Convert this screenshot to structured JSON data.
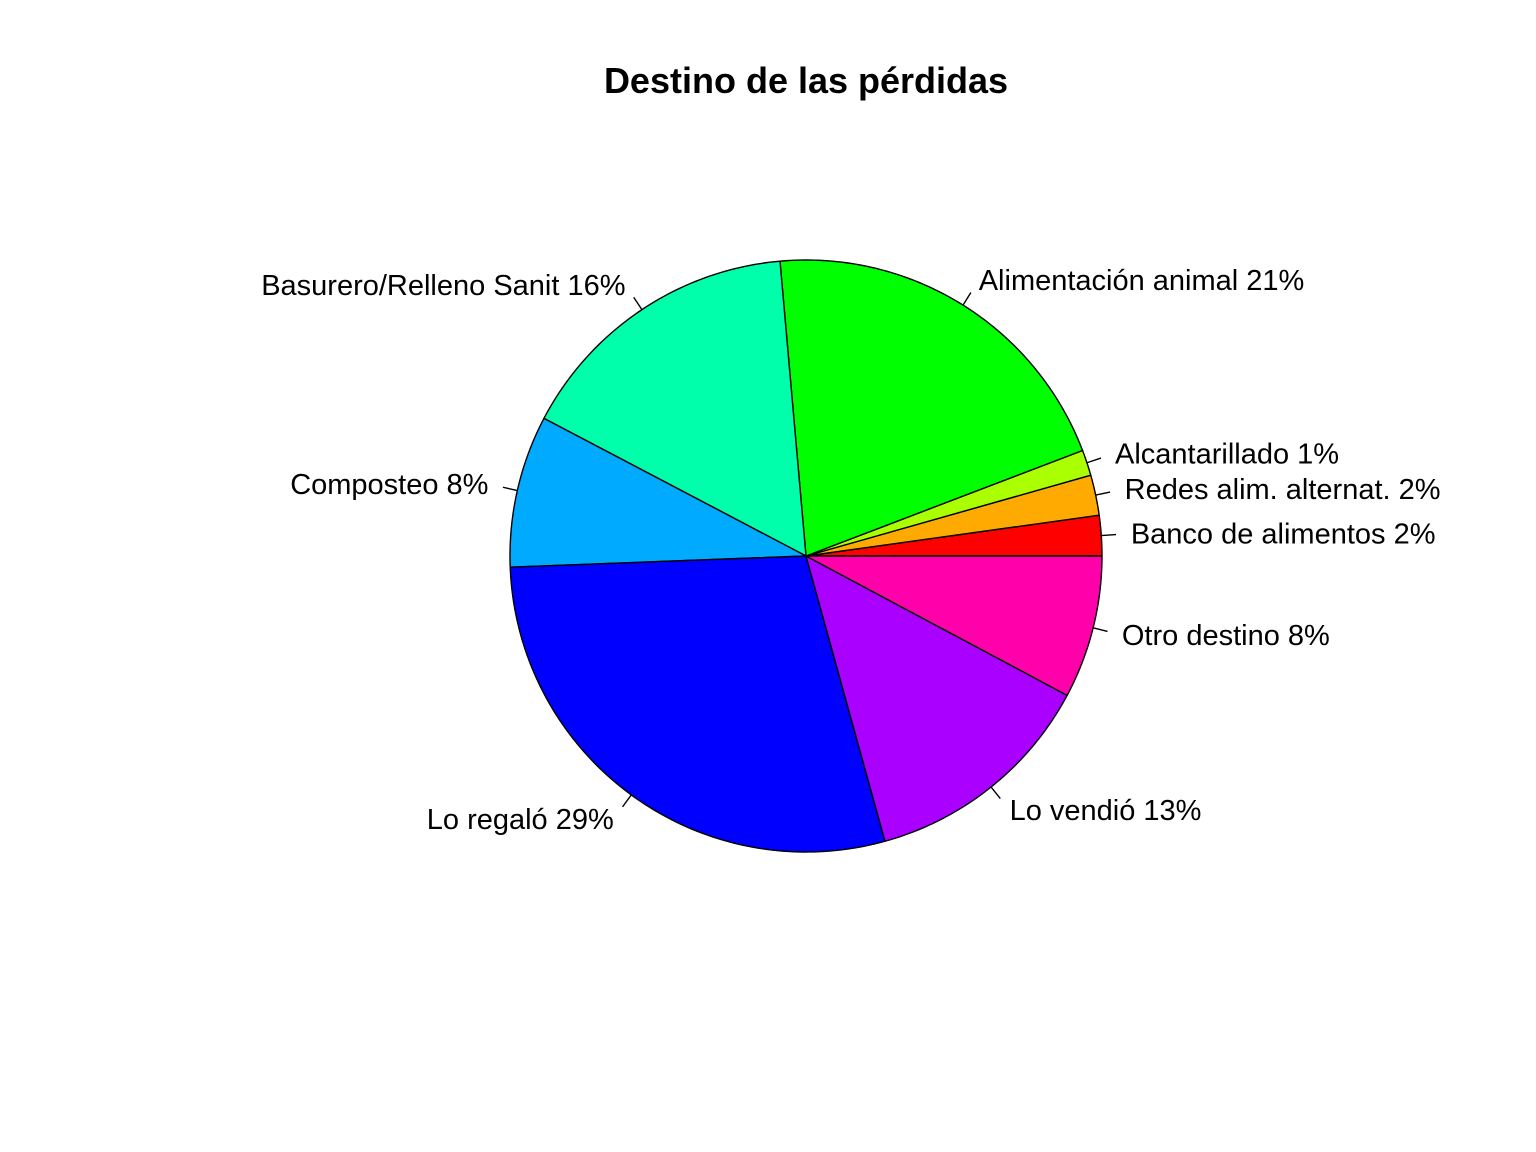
{
  "chart_data": {
    "type": "pie",
    "title": "Destino de las pérdidas",
    "start_angle_deg": 0,
    "direction": "counterclockwise",
    "slices": [
      {
        "label": "Banco de alimentos 2%",
        "value": 2.2,
        "color": "#FF0000"
      },
      {
        "label": "Redes alim. alternat. 2%",
        "value": 2.2,
        "color": "#FFAA00"
      },
      {
        "label": "Alcantarillado 1%",
        "value": 1.4,
        "color": "#AAFF00"
      },
      {
        "label": "Alimentación animal 21%",
        "value": 20.6,
        "color": "#00FF00"
      },
      {
        "label": "Basurero/Relleno Sanit 16%",
        "value": 15.9,
        "color": "#00FFAA"
      },
      {
        "label": "Composteo 8%",
        "value": 8.3,
        "color": "#00AAFF"
      },
      {
        "label": "Lo regaló 29%",
        "value": 28.7,
        "color": "#0000FF"
      },
      {
        "label": "Lo vendió 13%",
        "value": 12.9,
        "color": "#AA00FF"
      },
      {
        "label": "Otro destino 8%",
        "value": 7.8,
        "color": "#FF00AA"
      }
    ]
  }
}
